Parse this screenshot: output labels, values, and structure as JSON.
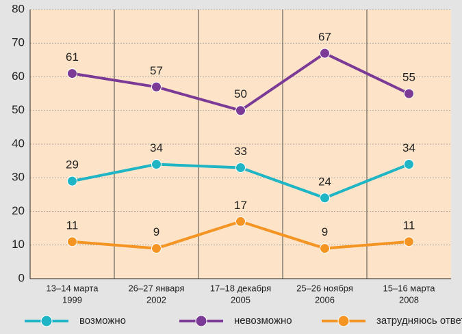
{
  "chart_data": {
    "type": "line",
    "categories": [
      [
        "13–14 марта",
        "1999"
      ],
      [
        "26–27 января",
        "2002"
      ],
      [
        "17–18 декабря",
        "2005"
      ],
      [
        "25–26 ноября",
        "2006"
      ],
      [
        "15–16 марта",
        "2008"
      ]
    ],
    "series": [
      {
        "name": "возможно",
        "color": "#1fb5c4",
        "values": [
          29,
          34,
          33,
          24,
          34
        ]
      },
      {
        "name": "невозможно",
        "color": "#7a3a95",
        "values": [
          61,
          57,
          50,
          67,
          55
        ]
      },
      {
        "name": "затрудняюсь ответить",
        "color": "#f39423",
        "values": [
          11,
          9,
          17,
          9,
          11
        ]
      }
    ],
    "ylim": [
      0,
      80
    ],
    "yticks": [
      0,
      10,
      20,
      30,
      40,
      50,
      60,
      70,
      80
    ],
    "grid": true,
    "legend": "bottom"
  }
}
